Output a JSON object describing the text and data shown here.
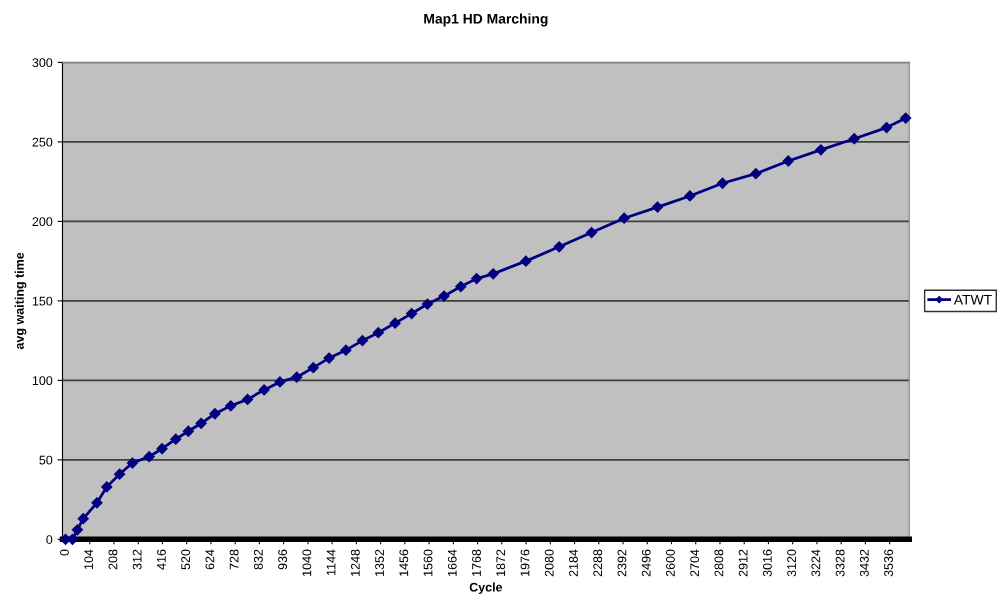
{
  "chart_data": {
    "type": "line",
    "title": "Map1 HD Marching",
    "xlabel": "Cycle",
    "ylabel": "avg waiting time",
    "x": [
      0,
      30,
      51,
      76,
      135,
      177,
      232,
      287,
      359,
      414,
      473,
      527,
      582,
      641,
      709,
      781,
      852,
      920,
      992,
      1063,
      1131,
      1203,
      1274,
      1342,
      1414,
      1485,
      1553,
      1624,
      1696,
      1764,
      1835,
      1975,
      2118,
      2257,
      2397,
      2540,
      2679,
      2819,
      2962,
      3101,
      3241,
      3384,
      3523,
      3605
    ],
    "series": [
      {
        "name": "ATWT",
        "color": "#000080",
        "values": [
          0,
          0,
          6,
          13,
          23,
          33,
          41,
          48,
          52,
          57,
          63,
          68,
          73,
          79,
          84,
          88,
          94,
          99,
          102,
          108,
          114,
          119,
          125,
          130,
          136,
          142,
          148,
          153,
          159,
          164,
          167,
          175,
          184,
          193,
          202,
          209,
          216,
          224,
          230,
          238,
          245,
          252,
          259,
          265
        ]
      }
    ],
    "xlim": [
      -13,
      3620
    ],
    "xticks": [
      0,
      104,
      208,
      312,
      416,
      520,
      624,
      728,
      832,
      936,
      1040,
      1144,
      1248,
      1352,
      1456,
      1560,
      1664,
      1768,
      1872,
      1976,
      2080,
      2184,
      2288,
      2392,
      2496,
      2600,
      2704,
      2808,
      2912,
      3016,
      3120,
      3224,
      3328,
      3432,
      3536
    ],
    "ylim": [
      0,
      300
    ],
    "yticks": [
      0,
      50,
      100,
      150,
      200,
      250,
      300
    ],
    "grid": "y",
    "legend": "right",
    "marker": "diamond",
    "line_style": "solid"
  }
}
